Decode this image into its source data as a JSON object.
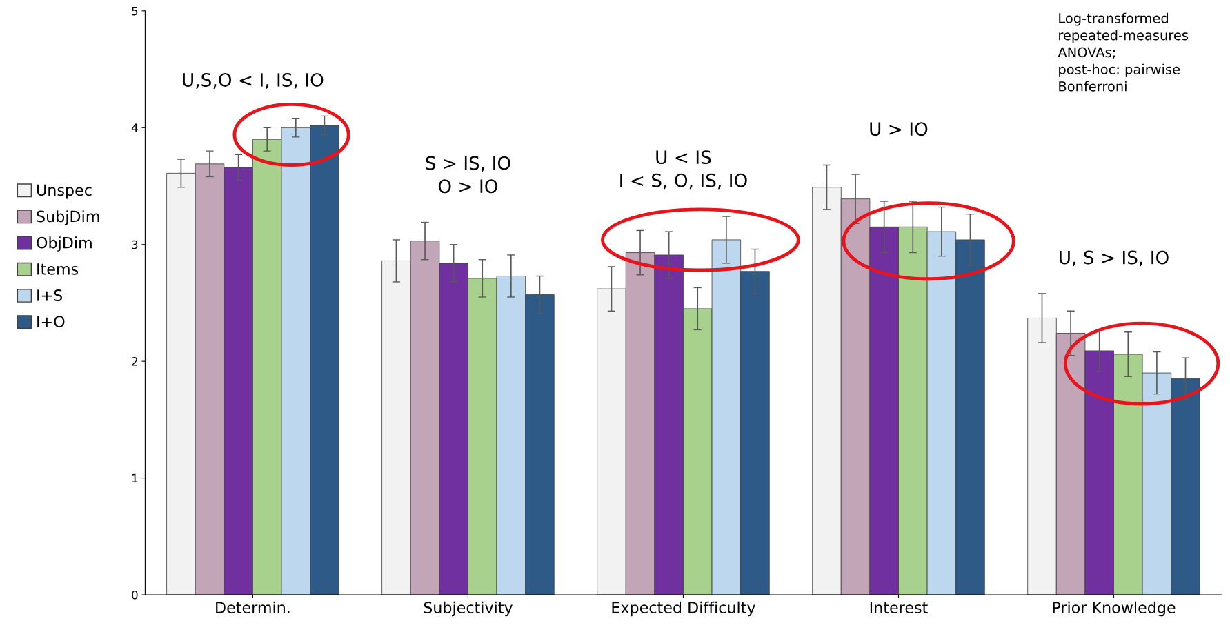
{
  "chart_data": {
    "type": "bar",
    "categories": [
      "Determin.",
      "Subjectivity",
      "Expected Difficulty",
      "Interest",
      "Prior Knowledge"
    ],
    "series": [
      {
        "name": "Unspec",
        "color": "#f2f2f2",
        "values": [
          3.61,
          2.86,
          2.62,
          3.49,
          2.37
        ],
        "errors": [
          0.12,
          0.18,
          0.19,
          0.19,
          0.21
        ]
      },
      {
        "name": "SubjDim",
        "color": "#c3a5b8",
        "values": [
          3.69,
          3.03,
          2.93,
          3.39,
          2.24
        ],
        "errors": [
          0.11,
          0.16,
          0.19,
          0.21,
          0.19
        ]
      },
      {
        "name": "ObjDim",
        "color": "#7030a0",
        "values": [
          3.66,
          2.84,
          2.91,
          3.15,
          2.09
        ],
        "errors": [
          0.11,
          0.16,
          0.2,
          0.22,
          0.18
        ]
      },
      {
        "name": "Items",
        "color": "#a9d18e",
        "values": [
          3.9,
          2.71,
          2.45,
          3.15,
          2.06
        ],
        "errors": [
          0.1,
          0.16,
          0.18,
          0.22,
          0.19
        ]
      },
      {
        "name": "I+S",
        "color": "#bdd7ee",
        "values": [
          4.0,
          2.73,
          3.04,
          3.11,
          1.9
        ],
        "errors": [
          0.08,
          0.18,
          0.2,
          0.21,
          0.18
        ]
      },
      {
        "name": "I+O",
        "color": "#2e5a87",
        "values": [
          4.02,
          2.57,
          2.77,
          3.04,
          1.85
        ],
        "errors": [
          0.08,
          0.16,
          0.19,
          0.22,
          0.18
        ]
      }
    ],
    "ylim": [
      0,
      5
    ],
    "yticks": [
      0,
      1,
      2,
      3,
      4,
      5
    ],
    "grid": false,
    "legend": "left",
    "annotations": [
      "U,S,O < I, IS, IO",
      "S > IS, IO\nO > IO",
      "U < IS\nI < S, O, IS, IO",
      "U > IO",
      "U, S > IS, IO",
      "Log-transformed\nrepeated-measures\nANOVAs;\npost-hoc: pairwise\nBonferroni"
    ]
  }
}
